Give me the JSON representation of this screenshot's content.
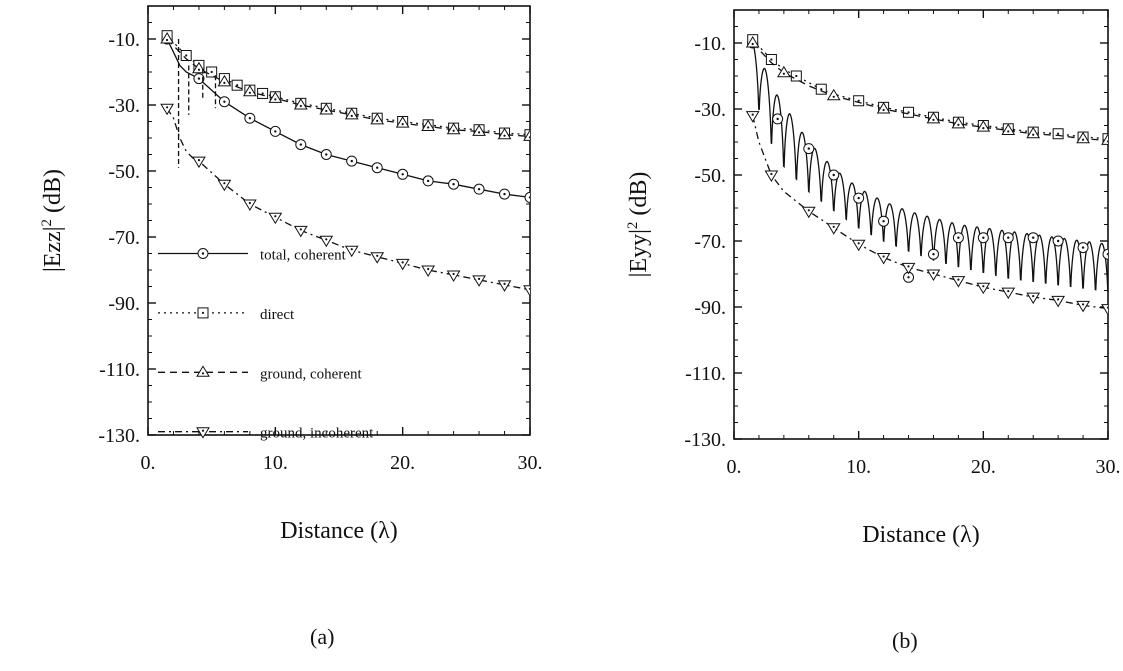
{
  "figure": {
    "panel_labels": [
      "(a)",
      "(b)"
    ]
  },
  "chart_data": [
    {
      "type": "line",
      "panel": "(a)",
      "xlabel": "Distance (λ)",
      "ylabel_main": "|Ezz|",
      "ylabel_sup": "2",
      "ylabel_unit": " (dB)",
      "xlim": [
        0,
        30
      ],
      "ylim": [
        -130,
        0
      ],
      "xticks": [
        0,
        10,
        20,
        30
      ],
      "xtick_labels": [
        "0.",
        "10.",
        "20.",
        "30."
      ],
      "yticks": [
        -10,
        -30,
        -50,
        -70,
        -90,
        -110,
        -130
      ],
      "ytick_labels": [
        "-10.",
        "-30.",
        "-50.",
        "-70.",
        "-90.",
        "-110.",
        "-130."
      ],
      "grid": false,
      "legend_placement": "lower-left",
      "series": [
        {
          "name": "total, coherent",
          "marker": "circle",
          "line": "solid",
          "x": [
            1.5,
            2.0,
            2.5,
            3.0,
            3.5,
            4.0,
            6.0,
            8.0,
            10.0,
            12.0,
            14.0,
            16.0,
            18.0,
            20.0,
            22.0,
            24.0,
            26.0,
            28.0,
            30.0
          ],
          "y": [
            -10,
            -14,
            -18,
            -20,
            -21,
            -22,
            -29,
            -34,
            -38,
            -42,
            -45,
            -47,
            -49,
            -51,
            -53,
            -54,
            -55.5,
            -57,
            -58
          ],
          "markers_x": [
            1.5,
            4.0,
            6.0,
            8.0,
            10.0,
            12.0,
            14.0,
            16.0,
            18.0,
            20.0,
            22.0,
            24.0,
            26.0,
            28.0,
            30.0
          ]
        },
        {
          "name": "direct",
          "marker": "square",
          "line": "dotted",
          "x": [
            1.5,
            3.0,
            4.0,
            5.0,
            6.0,
            7.0,
            8.0,
            9.0,
            10.0,
            12.0,
            14.0,
            16.0,
            18.0,
            20.0,
            22.0,
            24.0,
            26.0,
            28.0,
            30.0
          ],
          "y": [
            -9,
            -15,
            -18,
            -20,
            -22,
            -24,
            -25.5,
            -26.5,
            -27.5,
            -29.5,
            -31,
            -32.5,
            -34,
            -35,
            -36,
            -37,
            -37.5,
            -38.5,
            -39
          ],
          "markers_x": [
            1.5,
            3.0,
            4.0,
            5.0,
            6.0,
            7.0,
            8.0,
            9.0,
            10.0,
            12.0,
            14.0,
            16.0,
            18.0,
            20.0,
            22.0,
            24.0,
            26.0,
            28.0,
            30.0
          ]
        },
        {
          "name": "ground, coherent",
          "marker": "triangle-up",
          "line": "dashed",
          "x": [
            1.5,
            3.0,
            4.0,
            5.0,
            6.0,
            7.0,
            8.0,
            9.0,
            10.0,
            12.0,
            14.0,
            16.0,
            18.0,
            20.0,
            22.0,
            24.0,
            26.0,
            28.0,
            30.0
          ],
          "y": [
            -10,
            -16,
            -19,
            -21,
            -23,
            -24.5,
            -26,
            -27,
            -28,
            -30,
            -31.5,
            -33,
            -34.5,
            -35.5,
            -36.5,
            -37.5,
            -38,
            -39,
            -39.5
          ],
          "markers_x": [
            1.5,
            4.0,
            6.0,
            8.0,
            10.0,
            12.0,
            14.0,
            16.0,
            18.0,
            20.0,
            22.0,
            24.0,
            26.0,
            28.0,
            30.0
          ]
        },
        {
          "name": "ground, incoherent",
          "marker": "triangle-down",
          "line": "dash-dot",
          "x": [
            1.5,
            2.0,
            2.5,
            3.0,
            3.5,
            4.0,
            6.0,
            8.0,
            10.0,
            12.0,
            14.0,
            16.0,
            18.0,
            20.0,
            22.0,
            24.0,
            26.0,
            28.0,
            30.0
          ],
          "y": [
            -31,
            -34,
            -40,
            -44,
            -46,
            -47,
            -54,
            -60,
            -64,
            -68,
            -71,
            -74,
            -76,
            -78,
            -80,
            -81.5,
            -83,
            -84.5,
            -86
          ],
          "markers_x": [
            1.5,
            4.0,
            6.0,
            8.0,
            10.0,
            12.0,
            14.0,
            16.0,
            18.0,
            20.0,
            22.0,
            24.0,
            26.0,
            28.0,
            30.0
          ]
        }
      ]
    },
    {
      "type": "line",
      "panel": "(b)",
      "xlabel": "Distance (λ)",
      "ylabel_main": "|Eyy|",
      "ylabel_sup": "2",
      "ylabel_unit": " (dB)",
      "xlim": [
        0,
        30
      ],
      "ylim": [
        -130,
        0
      ],
      "xticks": [
        0,
        10,
        20,
        30
      ],
      "xtick_labels": [
        "0.",
        "10.",
        "20.",
        "30."
      ],
      "yticks": [
        -10,
        -30,
        -50,
        -70,
        -90,
        -110,
        -130
      ],
      "ytick_labels": [
        "-10.",
        "-30.",
        "-50.",
        "-70.",
        "-90.",
        "-110.",
        "-130."
      ],
      "grid": false,
      "series": [
        {
          "name": "total, coherent",
          "marker": "circle",
          "line": "solid",
          "x": [
            1.5,
            3.5,
            6.0,
            8.0,
            10.0,
            12.0,
            14.0,
            16.0,
            18.0,
            20.0,
            22.0,
            24.0,
            26.0,
            28.0,
            30.0
          ],
          "y": [
            -10,
            -33,
            -42,
            -50,
            -57,
            -64,
            -81,
            -74,
            -69,
            -69,
            -69,
            -69,
            -70,
            -72,
            -74
          ],
          "oscillating": true,
          "envelope_top": [
            -10,
            -26,
            -40,
            -48,
            -54,
            -58,
            -61,
            -63,
            -65,
            -66,
            -67,
            -68,
            -69,
            -70,
            -71
          ],
          "envelope_bottom": [
            -30,
            -52,
            -60,
            -65,
            -70,
            -74,
            -77,
            -80,
            -82,
            -84,
            -86,
            -87,
            -88,
            -89,
            -90
          ],
          "markers_x": [
            1.5,
            3.5,
            6.0,
            8.0,
            10.0,
            12.0,
            14.0,
            16.0,
            18.0,
            20.0,
            22.0,
            24.0,
            26.0,
            28.0,
            30.0
          ]
        },
        {
          "name": "direct",
          "marker": "square",
          "line": "dotted",
          "x": [
            1.5,
            3.0,
            4.0,
            5.0,
            6.0,
            7.0,
            8.0,
            9.0,
            10.0,
            12.0,
            14.0,
            16.0,
            18.0,
            20.0,
            22.0,
            24.0,
            26.0,
            28.0,
            30.0
          ],
          "y": [
            -9,
            -15,
            -18,
            -20,
            -22,
            -24,
            -25.5,
            -26.5,
            -27.5,
            -29.5,
            -31,
            -32.5,
            -34,
            -35,
            -36,
            -37,
            -37.5,
            -38.5,
            -39
          ],
          "markers_x": [
            1.5,
            3.0,
            5.0,
            7.0,
            10.0,
            12.0,
            14.0,
            16.0,
            18.0,
            20.0,
            22.0,
            24.0,
            26.0,
            28.0,
            30.0
          ]
        },
        {
          "name": "ground, coherent",
          "marker": "triangle-up",
          "line": "dashed",
          "x": [
            1.5,
            3.0,
            4.0,
            5.0,
            6.0,
            7.0,
            8.0,
            9.0,
            10.0,
            12.0,
            14.0,
            16.0,
            18.0,
            20.0,
            22.0,
            24.0,
            26.0,
            28.0,
            30.0
          ],
          "y": [
            -10,
            -16,
            -19,
            -21,
            -23,
            -24.5,
            -26,
            -27,
            -28,
            -30,
            -31.5,
            -33,
            -34.5,
            -35.5,
            -36.5,
            -37.5,
            -38,
            -39,
            -39.5
          ],
          "markers_x": [
            1.5,
            4.0,
            8.0,
            12.0,
            16.0,
            18.0,
            20.0,
            22.0,
            24.0,
            28.0,
            30.0
          ]
        },
        {
          "name": "ground, incoherent",
          "marker": "triangle-down",
          "line": "dash-dot",
          "x": [
            1.5,
            2.0,
            3.0,
            4.0,
            6.0,
            8.0,
            10.0,
            12.0,
            14.0,
            16.0,
            18.0,
            20.0,
            22.0,
            24.0,
            26.0,
            28.0,
            30.0
          ],
          "y": [
            -32,
            -40,
            -50,
            -55,
            -61,
            -66,
            -71,
            -75,
            -78,
            -80,
            -82,
            -84,
            -85.5,
            -87,
            -88,
            -89.5,
            -90.5
          ],
          "markers_x": [
            1.5,
            3.0,
            6.0,
            8.0,
            10.0,
            12.0,
            14.0,
            16.0,
            18.0,
            20.0,
            22.0,
            24.0,
            26.0,
            28.0,
            30.0
          ]
        }
      ]
    }
  ]
}
